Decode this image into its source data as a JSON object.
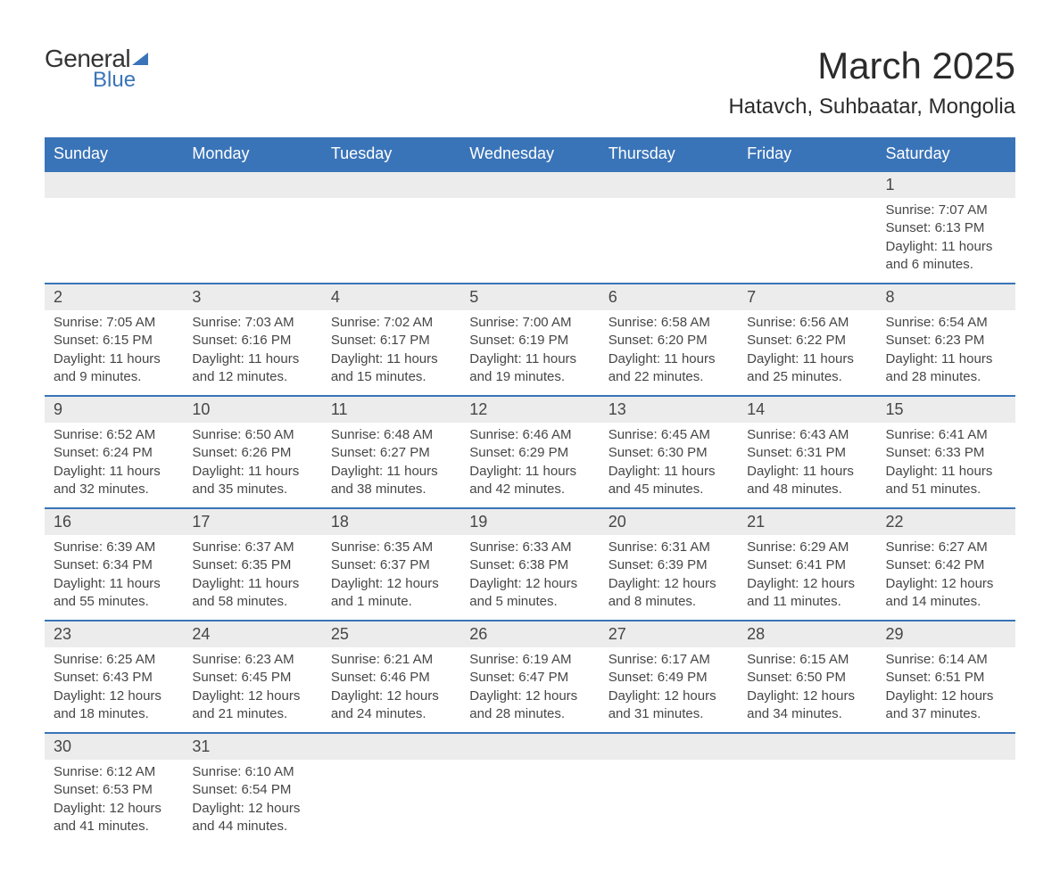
{
  "logo": {
    "word1": "General",
    "word2": "Blue"
  },
  "title": "March 2025",
  "location": "Hatavch, Suhbaatar, Mongolia",
  "colors": {
    "header_bg": "#3a74b8",
    "header_text": "#ffffff",
    "daynum_bg": "#ececec",
    "border": "#3a74b8",
    "text": "#464646",
    "page_bg": "#ffffff"
  },
  "typography": {
    "title_fontsize": 42,
    "location_fontsize": 24,
    "header_fontsize": 18,
    "daynum_fontsize": 18,
    "detail_fontsize": 15
  },
  "day_headers": [
    "Sunday",
    "Monday",
    "Tuesday",
    "Wednesday",
    "Thursday",
    "Friday",
    "Saturday"
  ],
  "weeks": [
    [
      null,
      null,
      null,
      null,
      null,
      null,
      {
        "n": "1",
        "sunrise": "Sunrise: 7:07 AM",
        "sunset": "Sunset: 6:13 PM",
        "daylight": "Daylight: 11 hours and 6 minutes."
      }
    ],
    [
      {
        "n": "2",
        "sunrise": "Sunrise: 7:05 AM",
        "sunset": "Sunset: 6:15 PM",
        "daylight": "Daylight: 11 hours and 9 minutes."
      },
      {
        "n": "3",
        "sunrise": "Sunrise: 7:03 AM",
        "sunset": "Sunset: 6:16 PM",
        "daylight": "Daylight: 11 hours and 12 minutes."
      },
      {
        "n": "4",
        "sunrise": "Sunrise: 7:02 AM",
        "sunset": "Sunset: 6:17 PM",
        "daylight": "Daylight: 11 hours and 15 minutes."
      },
      {
        "n": "5",
        "sunrise": "Sunrise: 7:00 AM",
        "sunset": "Sunset: 6:19 PM",
        "daylight": "Daylight: 11 hours and 19 minutes."
      },
      {
        "n": "6",
        "sunrise": "Sunrise: 6:58 AM",
        "sunset": "Sunset: 6:20 PM",
        "daylight": "Daylight: 11 hours and 22 minutes."
      },
      {
        "n": "7",
        "sunrise": "Sunrise: 6:56 AM",
        "sunset": "Sunset: 6:22 PM",
        "daylight": "Daylight: 11 hours and 25 minutes."
      },
      {
        "n": "8",
        "sunrise": "Sunrise: 6:54 AM",
        "sunset": "Sunset: 6:23 PM",
        "daylight": "Daylight: 11 hours and 28 minutes."
      }
    ],
    [
      {
        "n": "9",
        "sunrise": "Sunrise: 6:52 AM",
        "sunset": "Sunset: 6:24 PM",
        "daylight": "Daylight: 11 hours and 32 minutes."
      },
      {
        "n": "10",
        "sunrise": "Sunrise: 6:50 AM",
        "sunset": "Sunset: 6:26 PM",
        "daylight": "Daylight: 11 hours and 35 minutes."
      },
      {
        "n": "11",
        "sunrise": "Sunrise: 6:48 AM",
        "sunset": "Sunset: 6:27 PM",
        "daylight": "Daylight: 11 hours and 38 minutes."
      },
      {
        "n": "12",
        "sunrise": "Sunrise: 6:46 AM",
        "sunset": "Sunset: 6:29 PM",
        "daylight": "Daylight: 11 hours and 42 minutes."
      },
      {
        "n": "13",
        "sunrise": "Sunrise: 6:45 AM",
        "sunset": "Sunset: 6:30 PM",
        "daylight": "Daylight: 11 hours and 45 minutes."
      },
      {
        "n": "14",
        "sunrise": "Sunrise: 6:43 AM",
        "sunset": "Sunset: 6:31 PM",
        "daylight": "Daylight: 11 hours and 48 minutes."
      },
      {
        "n": "15",
        "sunrise": "Sunrise: 6:41 AM",
        "sunset": "Sunset: 6:33 PM",
        "daylight": "Daylight: 11 hours and 51 minutes."
      }
    ],
    [
      {
        "n": "16",
        "sunrise": "Sunrise: 6:39 AM",
        "sunset": "Sunset: 6:34 PM",
        "daylight": "Daylight: 11 hours and 55 minutes."
      },
      {
        "n": "17",
        "sunrise": "Sunrise: 6:37 AM",
        "sunset": "Sunset: 6:35 PM",
        "daylight": "Daylight: 11 hours and 58 minutes."
      },
      {
        "n": "18",
        "sunrise": "Sunrise: 6:35 AM",
        "sunset": "Sunset: 6:37 PM",
        "daylight": "Daylight: 12 hours and 1 minute."
      },
      {
        "n": "19",
        "sunrise": "Sunrise: 6:33 AM",
        "sunset": "Sunset: 6:38 PM",
        "daylight": "Daylight: 12 hours and 5 minutes."
      },
      {
        "n": "20",
        "sunrise": "Sunrise: 6:31 AM",
        "sunset": "Sunset: 6:39 PM",
        "daylight": "Daylight: 12 hours and 8 minutes."
      },
      {
        "n": "21",
        "sunrise": "Sunrise: 6:29 AM",
        "sunset": "Sunset: 6:41 PM",
        "daylight": "Daylight: 12 hours and 11 minutes."
      },
      {
        "n": "22",
        "sunrise": "Sunrise: 6:27 AM",
        "sunset": "Sunset: 6:42 PM",
        "daylight": "Daylight: 12 hours and 14 minutes."
      }
    ],
    [
      {
        "n": "23",
        "sunrise": "Sunrise: 6:25 AM",
        "sunset": "Sunset: 6:43 PM",
        "daylight": "Daylight: 12 hours and 18 minutes."
      },
      {
        "n": "24",
        "sunrise": "Sunrise: 6:23 AM",
        "sunset": "Sunset: 6:45 PM",
        "daylight": "Daylight: 12 hours and 21 minutes."
      },
      {
        "n": "25",
        "sunrise": "Sunrise: 6:21 AM",
        "sunset": "Sunset: 6:46 PM",
        "daylight": "Daylight: 12 hours and 24 minutes."
      },
      {
        "n": "26",
        "sunrise": "Sunrise: 6:19 AM",
        "sunset": "Sunset: 6:47 PM",
        "daylight": "Daylight: 12 hours and 28 minutes."
      },
      {
        "n": "27",
        "sunrise": "Sunrise: 6:17 AM",
        "sunset": "Sunset: 6:49 PM",
        "daylight": "Daylight: 12 hours and 31 minutes."
      },
      {
        "n": "28",
        "sunrise": "Sunrise: 6:15 AM",
        "sunset": "Sunset: 6:50 PM",
        "daylight": "Daylight: 12 hours and 34 minutes."
      },
      {
        "n": "29",
        "sunrise": "Sunrise: 6:14 AM",
        "sunset": "Sunset: 6:51 PM",
        "daylight": "Daylight: 12 hours and 37 minutes."
      }
    ],
    [
      {
        "n": "30",
        "sunrise": "Sunrise: 6:12 AM",
        "sunset": "Sunset: 6:53 PM",
        "daylight": "Daylight: 12 hours and 41 minutes."
      },
      {
        "n": "31",
        "sunrise": "Sunrise: 6:10 AM",
        "sunset": "Sunset: 6:54 PM",
        "daylight": "Daylight: 12 hours and 44 minutes."
      },
      null,
      null,
      null,
      null,
      null
    ]
  ]
}
